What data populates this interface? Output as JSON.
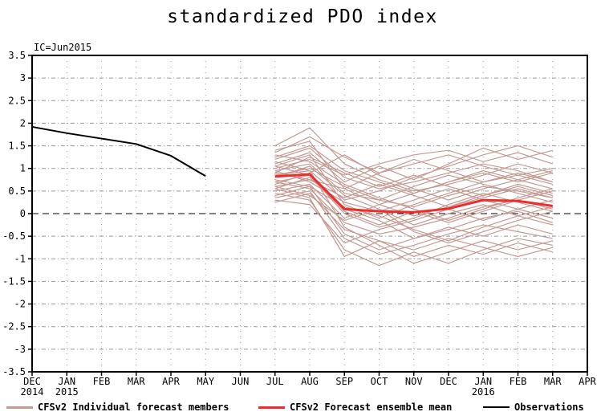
{
  "title": "standardized PDO index",
  "annotation": "IC=Jun2015",
  "legend": {
    "members_label": "CFSv2 Individual forecast members",
    "mean_label": "CFSv2 Forecast ensemble mean",
    "obs_label": "Observations"
  },
  "colors": {
    "members": "#c49a92",
    "mean": "#ee2c2c",
    "observations": "#000000",
    "grid": "#999999",
    "axis": "#000000",
    "background": "#ffffff"
  },
  "chart_data": {
    "type": "line",
    "title": "standardized PDO index",
    "annotation": "IC=Jun2015",
    "xlabel": "",
    "ylabel": "",
    "ylim": [
      -3.5,
      3.5
    ],
    "ytick_step": 0.5,
    "grid": "on",
    "legend_position": "bottom",
    "y_tick_labels": [
      "3.5",
      "3",
      "2.5",
      "2",
      "1.5",
      "1",
      "0.5",
      "0",
      "-0.5",
      "-1",
      "-1.5",
      "-2",
      "-2.5",
      "-3",
      "-3.5"
    ],
    "x_tick_months": [
      "DEC",
      "JAN",
      "FEB",
      "MAR",
      "APR",
      "MAY",
      "JUN",
      "JUL",
      "AUG",
      "SEP",
      "OCT",
      "NOV",
      "DEC",
      "JAN",
      "FEB",
      "MAR",
      "APR"
    ],
    "x_tick_years": {
      "0": "2014",
      "1": "2015",
      "13": "2016"
    },
    "series": [
      {
        "name": "Observations",
        "x_start": 0,
        "values": [
          1.92,
          1.78,
          1.66,
          1.54,
          1.28,
          0.83
        ]
      },
      {
        "name": "CFSv2 Forecast ensemble mean",
        "x_start": 7,
        "values": [
          0.82,
          0.87,
          0.1,
          0.05,
          0.03,
          0.11,
          0.3,
          0.28,
          0.17
        ]
      }
    ],
    "members_name": "CFSv2 Individual forecast members",
    "members_x_start": 7,
    "members": [
      [
        0.95,
        1.1,
        0.45,
        0.3,
        0.15,
        0.4,
        0.6,
        0.5,
        0.35
      ],
      [
        0.7,
        0.55,
        -0.2,
        -0.45,
        -0.3,
        -0.1,
        0.15,
        0.3,
        0.1
      ],
      [
        1.2,
        1.45,
        0.8,
        0.55,
        0.7,
        0.9,
        1.1,
        0.95,
        0.7
      ],
      [
        0.55,
        0.8,
        0.1,
        -0.15,
        -0.55,
        -0.35,
        -0.1,
        0.05,
        -0.2
      ],
      [
        1.5,
        1.9,
        1.1,
        0.75,
        0.5,
        0.65,
        0.85,
        1.1,
        0.9
      ],
      [
        0.35,
        0.5,
        -0.55,
        -0.9,
        -0.7,
        -0.45,
        -0.25,
        -0.4,
        -0.55
      ],
      [
        0.85,
        0.95,
        0.3,
        0.5,
        0.8,
        1.05,
        1.3,
        1.5,
        1.25
      ],
      [
        1.05,
        0.85,
        0.0,
        -0.3,
        -0.1,
        0.2,
        0.45,
        0.25,
        0.05
      ],
      [
        0.6,
        0.75,
        0.55,
        0.9,
        1.2,
        0.95,
        0.7,
        0.85,
        1.0
      ],
      [
        1.3,
        1.15,
        0.65,
        0.35,
        0.1,
        -0.15,
        0.1,
        0.35,
        0.55
      ],
      [
        0.45,
        0.3,
        -0.8,
        -1.15,
        -0.85,
        -1.1,
        -0.8,
        -0.55,
        -0.7
      ],
      [
        0.9,
        1.25,
        0.9,
        0.6,
        0.85,
        0.6,
        0.4,
        0.6,
        0.4
      ],
      [
        0.75,
        0.6,
        0.15,
        -0.05,
        -0.35,
        -0.6,
        -0.3,
        -0.05,
        0.15
      ],
      [
        1.1,
        1.35,
        0.7,
        1.05,
        0.75,
        1.1,
        1.45,
        1.2,
        1.4
      ],
      [
        0.25,
        0.45,
        -0.35,
        -0.6,
        -0.95,
        -0.7,
        -0.9,
        -0.65,
        -0.85
      ],
      [
        0.95,
        0.7,
        0.25,
        0.05,
        0.3,
        0.55,
        0.3,
        0.1,
        0.3
      ],
      [
        0.65,
        0.9,
        1.3,
        0.85,
        0.55,
        0.3,
        0.55,
        0.75,
        0.55
      ],
      [
        1.4,
        1.6,
        0.55,
        0.2,
        -0.05,
        0.15,
        0.35,
        0.55,
        0.35
      ],
      [
        0.5,
        0.65,
        -0.1,
        0.2,
        0.45,
        0.7,
        0.9,
        0.7,
        0.9
      ],
      [
        0.8,
        1.05,
        0.4,
        0.1,
        -0.25,
        0.0,
        0.2,
        -0.05,
        -0.25
      ],
      [
        1.15,
        0.95,
        -0.3,
        -0.7,
        -1.1,
        -0.85,
        -0.6,
        -0.8,
        -0.6
      ],
      [
        0.3,
        0.2,
        -0.65,
        -0.35,
        -0.15,
        0.1,
        -0.15,
        0.1,
        -0.1
      ],
      [
        1.0,
        1.2,
        0.85,
        1.1,
        1.3,
        1.4,
        1.15,
        1.35,
        1.1
      ],
      [
        0.7,
        0.85,
        0.05,
        -0.25,
        0.05,
        -0.2,
        0.05,
        0.3,
        0.5
      ],
      [
        1.25,
        1.5,
        0.95,
        0.7,
        0.45,
        0.7,
        0.95,
        0.75,
        0.95
      ],
      [
        0.4,
        0.6,
        -0.45,
        -0.8,
        -0.55,
        -0.3,
        -0.5,
        -0.25,
        -0.45
      ],
      [
        0.9,
        0.75,
        0.35,
        0.65,
        0.4,
        0.15,
        0.4,
        0.65,
        0.45
      ],
      [
        0.6,
        0.4,
        -0.15,
        0.1,
        -0.4,
        -0.65,
        -0.4,
        -0.15,
        0.05
      ],
      [
        1.35,
        1.7,
        1.25,
        0.9,
        1.1,
        1.3,
        1.05,
        0.85,
        0.65
      ],
      [
        0.85,
        1.0,
        0.6,
        0.3,
        0.6,
        0.85,
        0.65,
        0.45,
        0.25
      ],
      [
        0.55,
        0.35,
        -0.95,
        -0.6,
        -0.8,
        -0.55,
        -0.75,
        -0.95,
        -0.75
      ],
      [
        1.05,
        1.3,
        0.2,
        -0.1,
        0.2,
        0.45,
        0.7,
        0.9,
        0.7
      ]
    ]
  }
}
